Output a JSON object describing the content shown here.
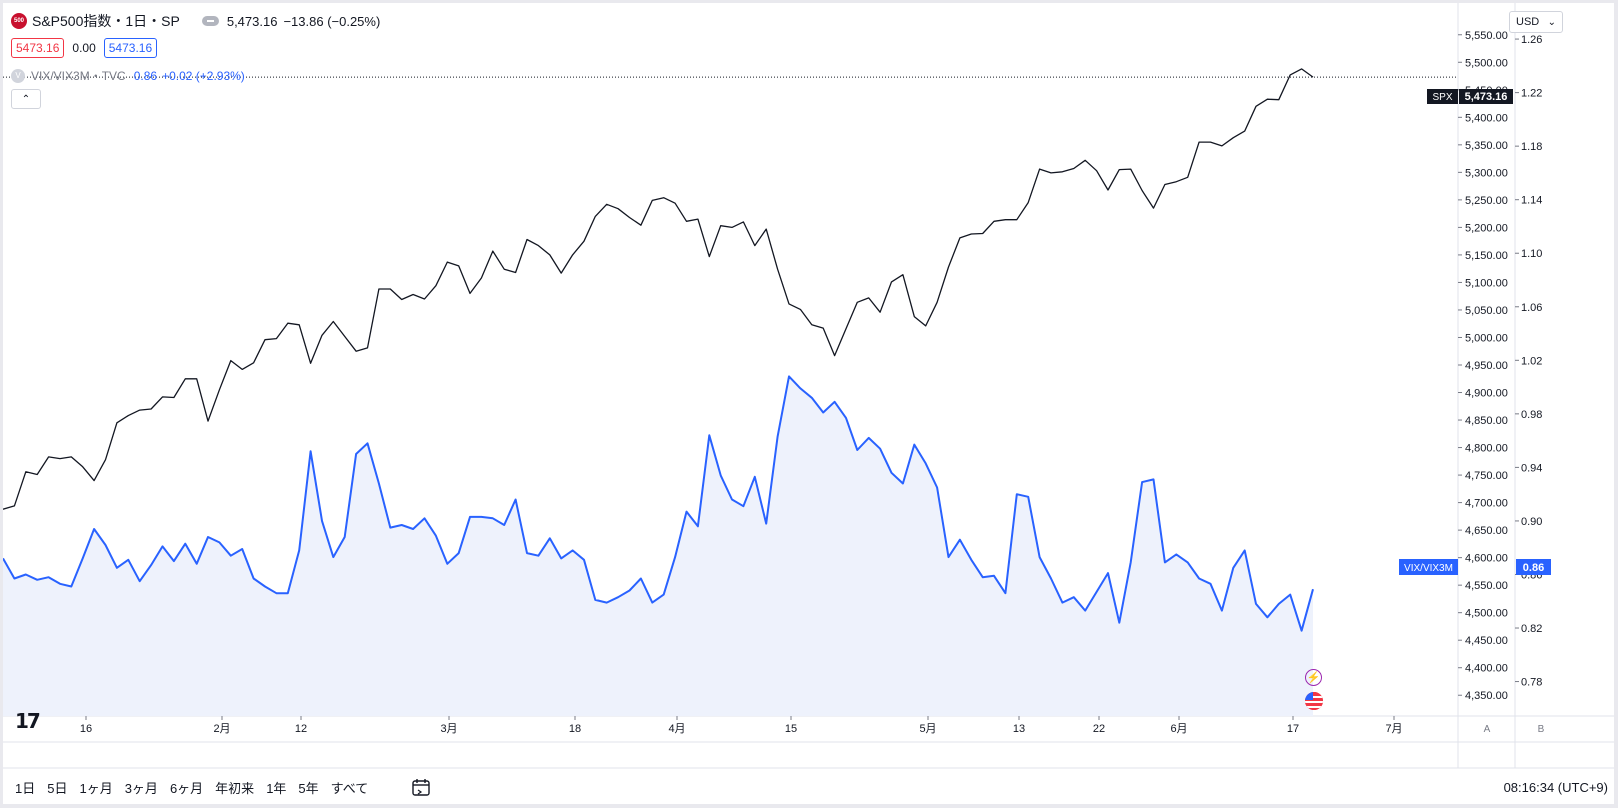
{
  "symbol": {
    "logo_text": "500",
    "title": "S&P500指数・1日・SP",
    "last": "5,473.16",
    "change": "−13.86 (−0.25%)",
    "bid": "5473.16",
    "spread": "0.00",
    "ask": "5473.16"
  },
  "overlay": {
    "icon_text": "V",
    "name": "VIX/VIX3M・TVC",
    "value": "0.86",
    "change": "+0.02 (+2.93%)"
  },
  "collapse_glyph": "⌃",
  "tv_logo": "17",
  "currency": {
    "selected": "USD",
    "chevron": "⌄"
  },
  "price_label": {
    "tag": "SPX",
    "value": "5,473.16"
  },
  "vix_label": {
    "tag": "VIX/VIX3M",
    "value": "0.86"
  },
  "axis_badges": {
    "left": "A",
    "right": "B"
  },
  "ranges": [
    "1日",
    "5日",
    "1ヶ月",
    "3ヶ月",
    "6ヶ月",
    "年初来",
    "1年",
    "5年",
    "すべて"
  ],
  "clock": "08:16:34 (UTC+9)",
  "event_icons": [
    "flash-icon",
    "us-flag-icon"
  ],
  "colors": {
    "spx": "#131722",
    "vix": "#2962ff",
    "vix_fill": "#eef2fc",
    "accent": "#2962ff",
    "logo": "#c8102e"
  },
  "chart_data": {
    "type": "line",
    "x_tick_labels": [
      "16",
      "2月",
      "12",
      "3月",
      "18",
      "4月",
      "15",
      "5月",
      "13",
      "22",
      "6月",
      "17",
      "7月"
    ],
    "y_left_ticks": [
      "5,550.00",
      "5,500.00",
      "5,450.00",
      "5,400.00",
      "5,350.00",
      "5,300.00",
      "5,250.00",
      "5,200.00",
      "5,150.00",
      "5,100.00",
      "5,050.00",
      "5,000.00",
      "4,950.00",
      "4,900.00",
      "4,850.00",
      "4,800.00",
      "4,750.00",
      "4,700.00",
      "4,650.00",
      "4,600.00",
      "4,550.00",
      "4,500.00",
      "4,450.00",
      "4,400.00",
      "4,350.00"
    ],
    "y_right_ticks": [
      "1.26",
      "1.22",
      "1.18",
      "1.14",
      "1.10",
      "1.06",
      "1.02",
      "0.98",
      "0.94",
      "0.90",
      "0.86",
      "0.82",
      "0.78"
    ],
    "ylim_left": [
      4325,
      5575
    ],
    "ylim_right": [
      0.7595,
      1.2735
    ],
    "grid": false,
    "series": [
      {
        "name": "S&P500指数",
        "axis": "left",
        "values": [
          4688,
          4694,
          4756,
          4751,
          4783,
          4780,
          4783,
          4765,
          4740,
          4778,
          4845,
          4858,
          4868,
          4870,
          4892,
          4891,
          4925,
          4925,
          4848,
          4905,
          4958,
          4942,
          4954,
          4996,
          4998,
          5026,
          5023,
          4953,
          5004,
          5029,
          5002,
          4975,
          4981,
          5088,
          5088,
          5069,
          5078,
          5070,
          5094,
          5137,
          5130,
          5080,
          5108,
          5157,
          5124,
          5118,
          5178,
          5167,
          5150,
          5117,
          5150,
          5175,
          5220,
          5242,
          5234,
          5218,
          5204,
          5249,
          5254,
          5244,
          5211,
          5215,
          5147,
          5203,
          5200,
          5210,
          5167,
          5197,
          5124,
          5061,
          5051,
          5023,
          5017,
          4967,
          5016,
          5064,
          5072,
          5046,
          5101,
          5114,
          5038,
          5021,
          5064,
          5128,
          5181,
          5188,
          5189,
          5211,
          5214,
          5214,
          5245,
          5306,
          5299,
          5301,
          5307,
          5322,
          5303,
          5268,
          5305,
          5306,
          5267,
          5235,
          5278,
          5283,
          5291,
          5355,
          5355,
          5348,
          5363,
          5375,
          5420,
          5433,
          5432,
          5477,
          5488,
          5473
        ]
      },
      {
        "name": "VIX/VIX3M",
        "axis": "right",
        "values": [
          0.872,
          0.857,
          0.86,
          0.856,
          0.858,
          0.853,
          0.851,
          0.872,
          0.894,
          0.882,
          0.865,
          0.871,
          0.855,
          0.867,
          0.881,
          0.87,
          0.883,
          0.868,
          0.888,
          0.884,
          0.874,
          0.879,
          0.857,
          0.851,
          0.846,
          0.846,
          0.878,
          0.952,
          0.9,
          0.873,
          0.888,
          0.95,
          0.958,
          0.928,
          0.895,
          0.897,
          0.894,
          0.902,
          0.889,
          0.868,
          0.876,
          0.903,
          0.903,
          0.902,
          0.897,
          0.916,
          0.876,
          0.874,
          0.887,
          0.872,
          0.878,
          0.871,
          0.841,
          0.839,
          0.843,
          0.848,
          0.857,
          0.839,
          0.845,
          0.873,
          0.907,
          0.896,
          0.964,
          0.934,
          0.916,
          0.911,
          0.933,
          0.898,
          0.963,
          1.008,
          0.999,
          0.992,
          0.981,
          0.989,
          0.977,
          0.953,
          0.962,
          0.954,
          0.936,
          0.928,
          0.957,
          0.943,
          0.925,
          0.873,
          0.886,
          0.871,
          0.858,
          0.859,
          0.846,
          0.92,
          0.918,
          0.873,
          0.857,
          0.839,
          0.843,
          0.833,
          0.847,
          0.861,
          0.824,
          0.869,
          0.929,
          0.931,
          0.869,
          0.875,
          0.869,
          0.857,
          0.853,
          0.833,
          0.865,
          0.878,
          0.838,
          0.828,
          0.838,
          0.845,
          0.818,
          0.849
        ]
      }
    ]
  }
}
